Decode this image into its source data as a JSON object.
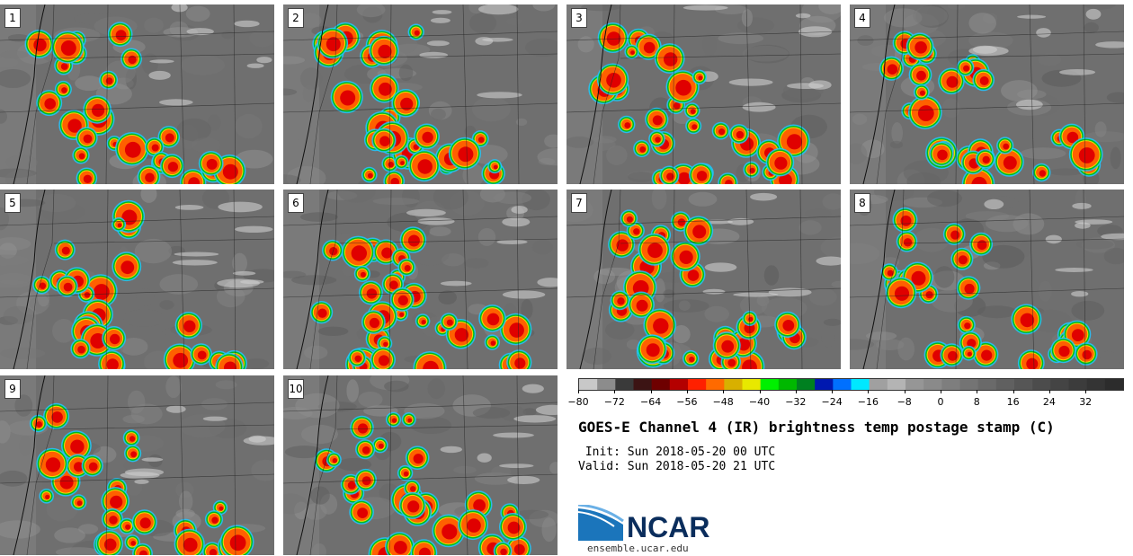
{
  "panels": [
    "1",
    "2",
    "3",
    "4",
    "5",
    "6",
    "7",
    "8",
    "9",
    "10"
  ],
  "colorbar": {
    "ticks": [
      "−80",
      "−72",
      "−64",
      "−56",
      "−48",
      "−40",
      "−32",
      "−24",
      "−16",
      "−8",
      "0",
      "8",
      "16",
      "24",
      "32"
    ],
    "colors": [
      "#c8c8c8",
      "#8c8c8c",
      "#3a3a3a",
      "#3c1414",
      "#6e0000",
      "#b40000",
      "#ff2000",
      "#ff6a00",
      "#d8b000",
      "#e8e800",
      "#00f000",
      "#00b800",
      "#008020",
      "#0018b0",
      "#0070ff",
      "#00e8ff",
      "#a0a0a0",
      "#b4b4b4",
      "#969696",
      "#8a8a8a",
      "#7e7e7e",
      "#747474",
      "#6a6a6a",
      "#606060",
      "#565656",
      "#4c4c4c",
      "#444444",
      "#3c3c3c",
      "#343434",
      "#2c2c2c"
    ]
  },
  "title": "GOES-E Channel 4 (IR) brightness temp postage stamp (C)",
  "init": " Init: Sun 2018-05-20 00 UTC",
  "valid": "Valid: Sun 2018-05-20 21 UTC",
  "logo": {
    "text": "NCAR",
    "site": "ensemble.ucar.edu"
  }
}
